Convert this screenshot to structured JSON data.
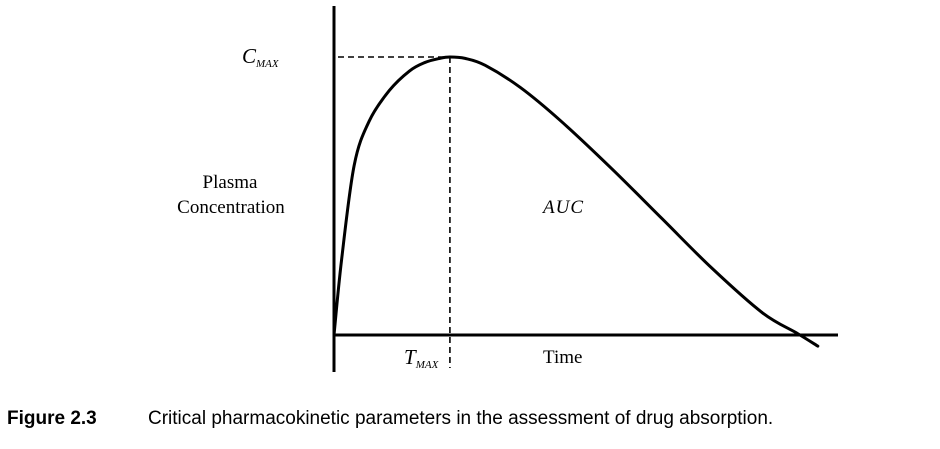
{
  "chart_data": {
    "type": "line",
    "ylabel_line1": "Plasma",
    "ylabel_line2": "Concentration",
    "xlabel": "Time",
    "cmax_label": {
      "main": "C",
      "sub": "MAX"
    },
    "tmax_label": {
      "main": "T",
      "sub": "MAX"
    },
    "auc_label": "AUC",
    "caption_prefix": "Figure 2.3",
    "caption_text": "Critical pharmacokinetic parameters in the assessment of drug absorption.",
    "xlim": [
      0,
      100
    ],
    "ylim": [
      0,
      100
    ],
    "series": [
      {
        "x": [
          0,
          1.5,
          4,
          7,
          11,
          15,
          18,
          21,
          23,
          26,
          30,
          37,
          45,
          55,
          65,
          75,
          85,
          92,
          96
        ],
        "y": [
          0,
          27,
          61,
          77,
          88,
          95,
          98,
          99.5,
          100,
          99.5,
          97,
          89,
          77,
          60,
          42,
          24,
          8,
          0.5,
          -4
        ]
      }
    ],
    "cmax": 100,
    "tmax": 23,
    "grid": false,
    "legend": "none"
  }
}
